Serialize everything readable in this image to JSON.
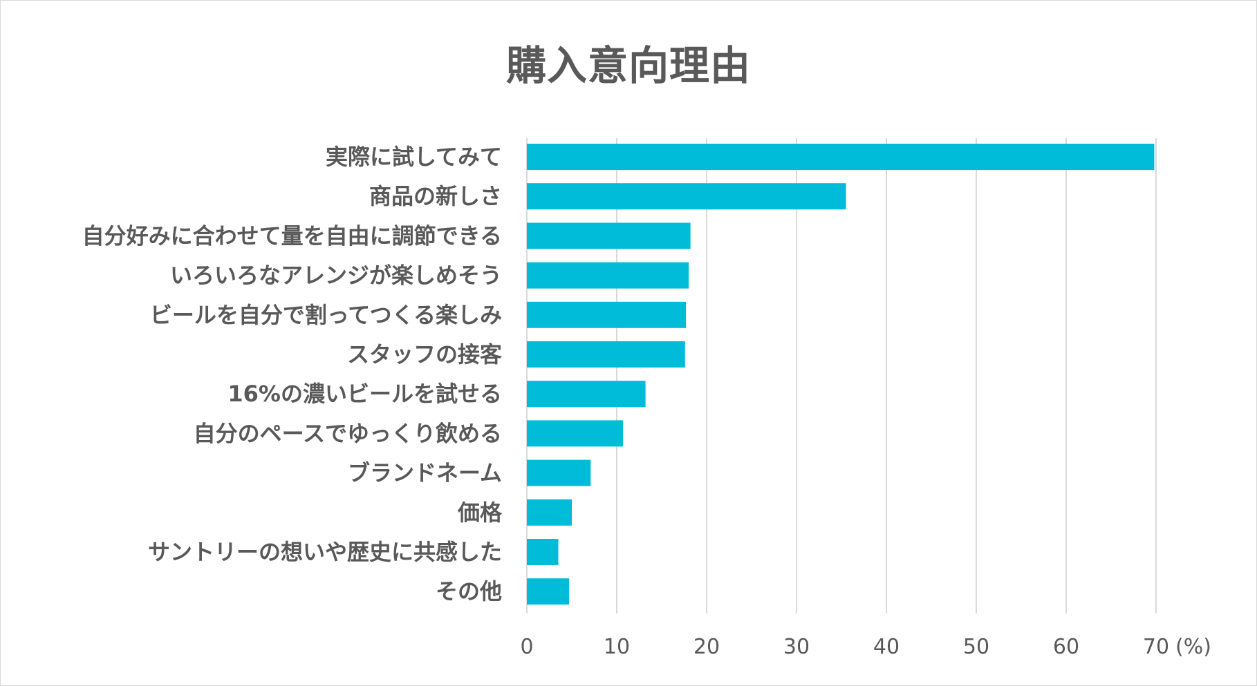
{
  "chart_data": {
    "type": "bar",
    "orientation": "horizontal",
    "title": "購入意向理由",
    "unit_label": "(%)",
    "categories": [
      "実際に試してみて",
      "商品の新しさ",
      "自分好みに合わせて量を自由に調節できる",
      "いろいろなアレンジが楽しめそう",
      "ビールを自分で割ってつくる楽しみ",
      "スタッフの接客",
      "16%の濃いビールを試せる",
      "自分のペースでゆっくり飲める",
      "ブランドネーム",
      "価格",
      "サントリーの想いや歴史に共感した",
      "その他"
    ],
    "values": [
      69.8,
      35.5,
      18.2,
      18.0,
      17.7,
      17.6,
      13.2,
      10.7,
      7.1,
      5.0,
      3.5,
      4.7
    ],
    "xlim": [
      0,
      70
    ],
    "xticks": [
      0,
      10,
      20,
      30,
      40,
      50,
      60,
      70
    ],
    "grid": true,
    "legend": "none",
    "bar_color": "#00BCD9",
    "grid_color": "#d9d9d9",
    "text_color": "#595959"
  }
}
